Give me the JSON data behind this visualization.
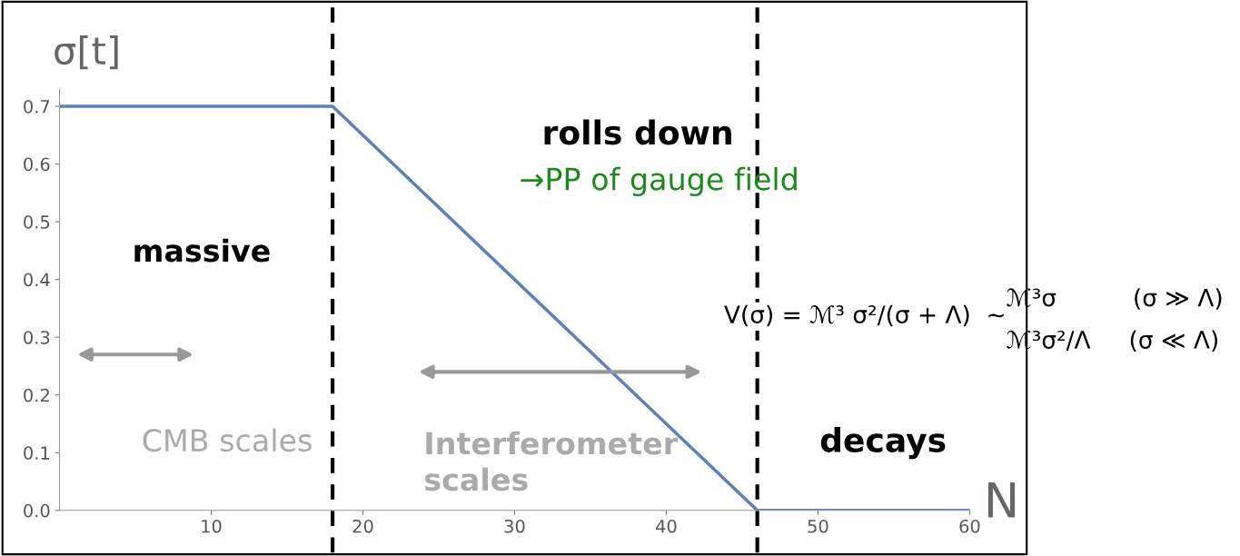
{
  "chart_data": {
    "type": "line",
    "xlabel": "N",
    "ylabel": "σ[t]",
    "x": [
      0,
      18,
      46,
      60
    ],
    "series": [
      {
        "color": "#5b7fbf",
        "values": [
          0.7,
          0.7,
          0.0,
          0.0
        ]
      }
    ],
    "xlim": [
      0,
      60
    ],
    "ylim": [
      0,
      0.73
    ],
    "xticks": [
      10,
      20,
      30,
      40,
      50,
      60
    ],
    "yticks": [
      {
        "value": 0,
        "label": "0.0"
      },
      0.1,
      0.2,
      0.3,
      0.4,
      0.5,
      0.6,
      0.7
    ],
    "grid": false,
    "legend": false,
    "marker": "none",
    "line_style": "solid",
    "ref_lines": [
      {
        "axis": "x",
        "value": 18,
        "color": "#000000",
        "line_style": "dashed"
      },
      {
        "axis": "x",
        "value": 46,
        "color": "#000000",
        "line_style": "dashed"
      }
    ],
    "annotations": [
      "massive",
      "rolls down",
      "→PP of gauge field",
      "V(σ) = ℳ³ σ²/(σ + Λ)  ∼",
      "ℳ³σ          (σ ≫ Λ)",
      "ℳ³σ²/Λ     (σ ≪ Λ)",
      "CMB scales",
      "Interferometer\nscales",
      "decays"
    ]
  }
}
